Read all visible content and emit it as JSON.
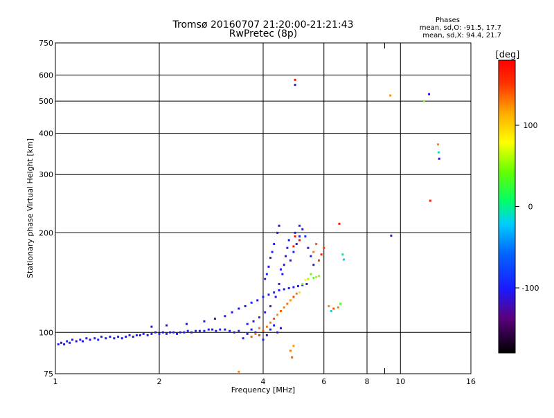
{
  "chart_data": {
    "type": "scatter",
    "title": "Tromsø 20160707 21:20:00-21:21:43",
    "subtitle": "RwPretec (8p)",
    "xlabel": "Frequency [MHz]",
    "ylabel": "Stationary phase Virtual Height [km]",
    "x_scale": "log",
    "y_scale": "log",
    "xlim": [
      1,
      16
    ],
    "ylim": [
      75,
      750
    ],
    "x_ticks": [
      1,
      2,
      4,
      6,
      8,
      10,
      16
    ],
    "x_tick_labels": [
      "1",
      "2",
      "4",
      "6",
      "8",
      "10",
      "16"
    ],
    "x_minor_ticks": [
      9
    ],
    "y_ticks": [
      75,
      100,
      200,
      300,
      400,
      500,
      600,
      750
    ],
    "y_tick_labels": [
      "75",
      "100",
      "200",
      "300",
      "400",
      "500",
      "600",
      "750"
    ],
    "grid": true,
    "stats": {
      "heading": "Phases",
      "lines": [
        "mean, sd,O: -91.5, 17.7",
        "mean, sd,X:  94.4, 21.7"
      ]
    },
    "colorbar": {
      "label": "[deg]",
      "range": [
        -180,
        180
      ],
      "ticks": [
        100,
        0,
        -100
      ],
      "tick_labels": [
        "100",
        "0",
        "-100"
      ]
    },
    "series": [
      {
        "values": [
          [
            1.02,
            92,
            -105
          ],
          [
            1.04,
            93,
            -100
          ],
          [
            1.06,
            92,
            -110
          ],
          [
            1.08,
            94,
            -95
          ],
          [
            1.1,
            93,
            -105
          ],
          [
            1.12,
            95,
            -100
          ],
          [
            1.15,
            94,
            -110
          ],
          [
            1.18,
            95,
            -95
          ],
          [
            1.2,
            94,
            -105
          ],
          [
            1.23,
            96,
            -100
          ],
          [
            1.26,
            95,
            -110
          ],
          [
            1.3,
            96,
            -100
          ],
          [
            1.33,
            95,
            -95
          ],
          [
            1.36,
            97,
            -105
          ],
          [
            1.4,
            96,
            -100
          ],
          [
            1.44,
            97,
            -110
          ],
          [
            1.48,
            96,
            -95
          ],
          [
            1.52,
            97,
            -105
          ],
          [
            1.56,
            96,
            -100
          ],
          [
            1.6,
            97,
            -110
          ],
          [
            1.64,
            98,
            -95
          ],
          [
            1.68,
            97,
            -105
          ],
          [
            1.72,
            98,
            -100
          ],
          [
            1.76,
            98,
            -110
          ],
          [
            1.8,
            99,
            -95
          ],
          [
            1.85,
            98,
            -105
          ],
          [
            1.9,
            99,
            -100
          ],
          [
            1.95,
            100,
            -110
          ],
          [
            2.0,
            99,
            -95
          ],
          [
            2.05,
            100,
            -105
          ],
          [
            2.1,
            99,
            -100
          ],
          [
            2.15,
            100,
            -110
          ],
          [
            2.2,
            100,
            -95
          ],
          [
            2.25,
            99,
            -105
          ],
          [
            2.3,
            100,
            -100
          ],
          [
            2.36,
            100,
            -110
          ],
          [
            2.42,
            101,
            -95
          ],
          [
            2.48,
            100,
            -105
          ],
          [
            2.55,
            101,
            -100
          ],
          [
            2.62,
            101,
            -110
          ],
          [
            2.7,
            101,
            -95
          ],
          [
            2.78,
            102,
            -105
          ],
          [
            2.85,
            102,
            -100
          ],
          [
            2.92,
            101,
            -110
          ],
          [
            3.0,
            102,
            -95
          ],
          [
            3.1,
            102,
            -105
          ],
          [
            3.2,
            101,
            -100
          ],
          [
            3.3,
            100,
            -110
          ],
          [
            3.4,
            101,
            -95
          ],
          [
            1.9,
            104,
            -100
          ],
          [
            2.1,
            105,
            -105
          ],
          [
            2.4,
            106,
            -110
          ],
          [
            2.7,
            108,
            -100
          ],
          [
            2.9,
            110,
            -105
          ],
          [
            3.1,
            112,
            -95
          ],
          [
            3.25,
            115,
            -110
          ],
          [
            3.4,
            118,
            -100
          ],
          [
            3.55,
            120,
            -105
          ],
          [
            3.7,
            123,
            -95
          ],
          [
            3.85,
            125,
            -110
          ],
          [
            4.0,
            128,
            -100
          ],
          [
            4.15,
            130,
            -105
          ],
          [
            4.3,
            132,
            -95
          ],
          [
            4.45,
            134,
            -110
          ],
          [
            4.6,
            135,
            -100
          ],
          [
            4.75,
            136,
            -105
          ],
          [
            4.9,
            137,
            -95
          ],
          [
            5.05,
            138,
            -110
          ],
          [
            5.2,
            139,
            -100
          ],
          [
            5.35,
            140,
            -105
          ],
          [
            3.6,
            106,
            -100
          ],
          [
            3.75,
            108,
            -110
          ],
          [
            3.9,
            111,
            -95
          ],
          [
            4.05,
            115,
            -105
          ],
          [
            4.2,
            120,
            -100
          ],
          [
            4.35,
            128,
            -110
          ],
          [
            4.45,
            140,
            -95
          ],
          [
            4.55,
            150,
            -105
          ],
          [
            4.6,
            160,
            -100
          ],
          [
            4.65,
            170,
            -110
          ],
          [
            4.7,
            180,
            -95
          ],
          [
            4.75,
            190,
            -105
          ],
          [
            4.4,
            200,
            -100
          ],
          [
            4.45,
            210,
            -110
          ],
          [
            4.3,
            185,
            -95
          ],
          [
            4.25,
            175,
            -105
          ],
          [
            4.2,
            168,
            -100
          ],
          [
            4.15,
            158,
            -110
          ],
          [
            4.1,
            150,
            -95
          ],
          [
            4.05,
            145,
            -105
          ],
          [
            4.5,
            155,
            -100
          ],
          [
            4.8,
            165,
            -110
          ],
          [
            4.9,
            175,
            -95
          ],
          [
            5.0,
            185,
            -105
          ],
          [
            5.1,
            195,
            -100
          ],
          [
            5.2,
            205,
            -110
          ],
          [
            5.3,
            195,
            -95
          ],
          [
            5.4,
            180,
            -105
          ],
          [
            5.5,
            170,
            -100
          ],
          [
            5.6,
            160,
            -110
          ],
          [
            5.1,
            210,
            -95
          ],
          [
            4.95,
            200,
            -105
          ],
          [
            4.0,
            95,
            -100
          ],
          [
            4.1,
            98,
            -110
          ],
          [
            4.2,
            102,
            -95
          ],
          [
            4.3,
            105,
            -105
          ],
          [
            4.4,
            100,
            -100
          ],
          [
            4.5,
            103,
            -110
          ],
          [
            3.5,
            96,
            -95
          ],
          [
            3.6,
            99,
            -105
          ],
          [
            3.7,
            102,
            -100
          ],
          [
            3.8,
            100,
            -110
          ],
          [
            3.9,
            98,
            150
          ],
          [
            4.0,
            101,
            140
          ],
          [
            4.1,
            104,
            135
          ],
          [
            4.2,
            107,
            130
          ],
          [
            4.3,
            110,
            145
          ],
          [
            4.4,
            113,
            125
          ],
          [
            4.5,
            116,
            140
          ],
          [
            4.6,
            119,
            130
          ],
          [
            4.7,
            122,
            135
          ],
          [
            4.8,
            125,
            120
          ],
          [
            4.9,
            128,
            145
          ],
          [
            5.0,
            131,
            130
          ],
          [
            3.7,
            97,
            140
          ],
          [
            3.8,
            99,
            135
          ],
          [
            3.9,
            103,
            130
          ],
          [
            5.2,
            140,
            50
          ],
          [
            5.4,
            145,
            60
          ],
          [
            5.6,
            146,
            40
          ],
          [
            5.7,
            147,
            55
          ],
          [
            5.5,
            150,
            45
          ],
          [
            5.3,
            144,
            80
          ],
          [
            5.1,
            132,
            90
          ],
          [
            5.8,
            148,
            50
          ],
          [
            6.2,
            120,
            125
          ],
          [
            6.4,
            118,
            140
          ],
          [
            6.6,
            119,
            130
          ],
          [
            6.3,
            116,
            -10
          ],
          [
            6.7,
            122,
            35
          ],
          [
            5.6,
            175,
            130
          ],
          [
            5.7,
            185,
            140
          ],
          [
            5.8,
            165,
            155
          ],
          [
            5.9,
            172,
            160
          ],
          [
            6.0,
            180,
            150
          ],
          [
            4.95,
            195,
            170
          ],
          [
            5.1,
            190,
            175
          ],
          [
            4.9,
            182,
            165
          ],
          [
            4.8,
            88,
            130
          ],
          [
            4.85,
            84,
            140
          ],
          [
            4.9,
            91,
            120
          ],
          [
            3.4,
            76,
            125
          ],
          [
            4.95,
            580,
            170
          ],
          [
            4.95,
            560,
            -105
          ],
          [
            6.65,
            213,
            170
          ],
          [
            6.8,
            172,
            -10
          ],
          [
            6.85,
            166,
            -20
          ],
          [
            9.35,
            520,
            125
          ],
          [
            9.4,
            196,
            -105
          ],
          [
            11.7,
            500,
            50
          ],
          [
            12.1,
            525,
            -105
          ],
          [
            12.2,
            250,
            170
          ],
          [
            12.85,
            370,
            125
          ],
          [
            12.9,
            350,
            -10
          ],
          [
            12.95,
            335,
            -105
          ]
        ]
      }
    ]
  }
}
